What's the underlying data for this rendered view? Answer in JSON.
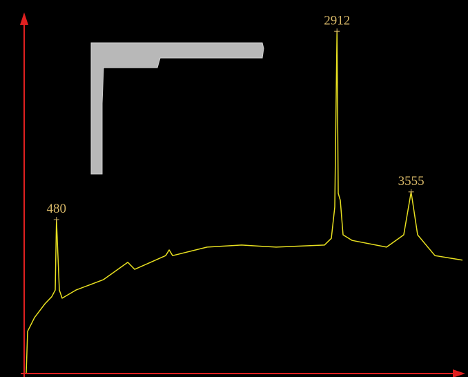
{
  "chart_data": {
    "type": "line",
    "x": [
      218,
      230,
      290,
      380,
      439,
      469,
      480,
      505,
      529,
      649,
      888,
      1098,
      1158,
      1427,
      1457,
      1487,
      1786,
      2085,
      2384,
      2803,
      2863,
      2893,
      2912,
      2923,
      2941,
      2965,
      3043,
      3342,
      3491,
      3555,
      3611,
      3761,
      4000
    ],
    "series": [
      {
        "color": "#e8e020",
        "values": [
          0,
          11.8,
          15.7,
          19.6,
          21.6,
          23.5,
          43.5,
          23.5,
          21.2,
          23.5,
          26.5,
          31.4,
          29.4,
          33.3,
          34.9,
          33.3,
          35.7,
          36.3,
          35.7,
          36.3,
          38.2,
          47.1,
          97,
          51,
          49,
          39.2,
          37.6,
          35.7,
          39.2,
          51.4,
          39.2,
          33.3,
          32
        ]
      }
    ],
    "xlim": [
      200,
      4000
    ],
    "ylim": [
      0,
      100
    ],
    "peaks": {
      "x": [
        480,
        2912,
        3555
      ],
      "y": [
        43.5,
        97,
        51.4
      ],
      "color": "#d8b868"
    },
    "axis_color": "#e02020"
  }
}
